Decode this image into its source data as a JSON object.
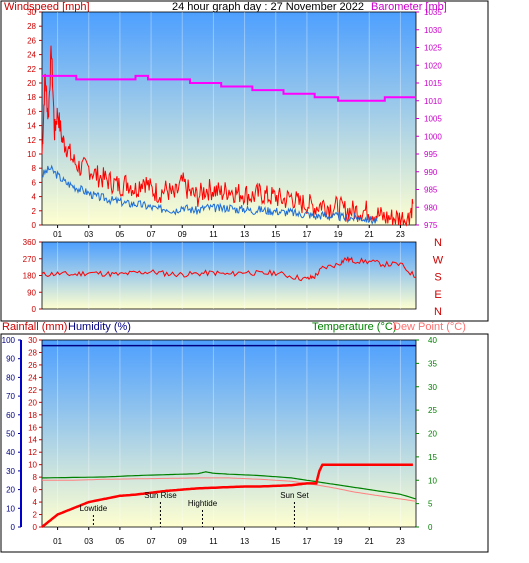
{
  "header": {
    "wind_label": "Windspeed [mph]",
    "title": "24 hour graph day : 27 November 2022",
    "baro_label": "Barometer [mb]"
  },
  "lower_header": {
    "rain_label": "Rainfall (mm)",
    "humidity_label": "Humidity (%)",
    "temp_label": "Temperature (°C)",
    "dew_label": "Dew Point (°C)"
  },
  "colors": {
    "wind": "#ff0000",
    "gust": "#ff0000",
    "avg": "#1e6fd8",
    "baro": "#ff00ff",
    "rain": "#ff0000",
    "humidity": "#000080",
    "temp": "#008000",
    "dew": "#ff8080",
    "sky_top": "#4d9fff",
    "sky_bottom": "#ffffd0"
  },
  "x_ticks": [
    "01",
    "03",
    "05",
    "07",
    "09",
    "11",
    "13",
    "15",
    "17",
    "19",
    "21",
    "23"
  ],
  "chart_data": [
    {
      "type": "line",
      "name": "wind_baro",
      "x_range_hours": [
        0,
        24
      ],
      "wind_axis": {
        "range": [
          0,
          30
        ],
        "ticks": [
          0,
          2,
          4,
          6,
          8,
          10,
          12,
          14,
          16,
          18,
          20,
          22,
          24,
          26,
          28,
          30
        ]
      },
      "baro_axis": {
        "range": [
          975,
          1035
        ],
        "ticks": [
          975,
          980,
          985,
          990,
          995,
          1000,
          1005,
          1010,
          1015,
          1020,
          1025,
          1030,
          1035
        ]
      },
      "series": [
        {
          "key": "gust",
          "x": [
            0,
            0.2,
            0.4,
            0.6,
            0.8,
            1,
            1.3,
            1.6,
            2,
            2.5,
            3,
            3.5,
            4,
            4.5,
            5,
            5.5,
            6,
            6.5,
            7,
            7.5,
            8,
            8.5,
            9,
            9.5,
            10,
            10.5,
            11,
            11.5,
            12,
            12.5,
            13,
            13.5,
            14,
            14.5,
            15,
            15.5,
            16,
            16.5,
            17,
            17.5,
            18,
            18.5,
            19,
            19.5,
            20,
            20.5,
            21,
            21.5,
            22,
            22.5,
            23,
            23.5,
            23.8
          ],
          "y": [
            10,
            21,
            15,
            25,
            13,
            16,
            12,
            11,
            9,
            8,
            8,
            7,
            6.5,
            6,
            5.5,
            6,
            5,
            6.5,
            5,
            4.5,
            5,
            4,
            6,
            4.5,
            4,
            5,
            5,
            4.5,
            5,
            4.5,
            4.5,
            4,
            4.5,
            4,
            4,
            3.5,
            4,
            3,
            3,
            2.5,
            3,
            2.5,
            2.5,
            2,
            2,
            2,
            2,
            1.5,
            1,
            1,
            1,
            1,
            3
          ]
        },
        {
          "key": "avg",
          "x": [
            0,
            0.5,
            1,
            1.5,
            2,
            2.5,
            3,
            3.5,
            4,
            4.5,
            5,
            5.5,
            6,
            6.5,
            7,
            7.5,
            8,
            8.5,
            9,
            9.5,
            10,
            10.5,
            11,
            11.5,
            12,
            12.5,
            13,
            13.5,
            14,
            14.5,
            15,
            15.5,
            16,
            16.5,
            17,
            17.5,
            18,
            18.5,
            19,
            19.5,
            20,
            20.5,
            21,
            21.5
          ],
          "y": [
            7,
            8,
            7,
            6,
            5.5,
            5,
            4.5,
            4,
            3.8,
            3.5,
            3.3,
            3,
            3,
            2.8,
            2.5,
            2.2,
            2.4,
            2,
            2.6,
            2.2,
            2,
            2.5,
            2.4,
            2.3,
            2.5,
            2.2,
            2.3,
            2,
            2.2,
            2,
            2,
            1.8,
            1.8,
            1.5,
            1.6,
            1.2,
            1.4,
            1.2,
            1.2,
            1,
            1,
            1,
            0.8,
            0.5
          ]
        },
        {
          "key": "baro",
          "x": [
            0,
            1,
            1.5,
            2.2,
            3,
            4,
            5,
            6,
            6.8,
            7.5,
            8.5,
            9.5,
            10.5,
            11.5,
            12.5,
            13.5,
            14.5,
            15.5,
            16.5,
            17.5,
            18.5,
            19,
            20,
            21,
            22,
            23,
            24
          ],
          "y": [
            1017,
            1017,
            1017,
            1016,
            1016,
            1016,
            1016,
            1017,
            1016,
            1016,
            1016,
            1015,
            1015,
            1014,
            1014,
            1013,
            1013,
            1012,
            1012,
            1011,
            1011,
            1010,
            1010,
            1010,
            1011,
            1011,
            1011
          ]
        }
      ]
    },
    {
      "type": "line",
      "name": "wind_direction",
      "x_range_hours": [
        0,
        24
      ],
      "y_axis": {
        "range": [
          0,
          360
        ],
        "ticks": [
          0,
          90,
          180,
          270,
          360
        ]
      },
      "compass": [
        "N",
        "W",
        "S",
        "E",
        "N"
      ],
      "series": [
        {
          "key": "direction",
          "x": [
            0,
            1,
            2,
            3,
            4,
            5,
            6,
            7,
            8,
            9,
            10,
            11,
            12,
            13,
            14,
            15,
            16,
            17,
            17.5,
            18,
            19,
            19.5,
            20,
            21,
            22,
            23,
            24
          ],
          "y": [
            185,
            190,
            185,
            195,
            190,
            185,
            195,
            200,
            190,
            185,
            190,
            195,
            185,
            200,
            190,
            195,
            175,
            160,
            175,
            220,
            240,
            270,
            260,
            255,
            240,
            240,
            170
          ]
        }
      ]
    },
    {
      "type": "line",
      "name": "rain_humidity_temp",
      "x_range_hours": [
        0,
        24
      ],
      "rain_axis": {
        "range": [
          0,
          30
        ],
        "ticks": [
          0,
          2,
          4,
          6,
          8,
          10,
          12,
          14,
          16,
          18,
          20,
          22,
          24,
          26,
          28,
          30
        ]
      },
      "humidity_axis": {
        "range": [
          0,
          100
        ],
        "ticks": [
          0,
          10,
          20,
          30,
          40,
          50,
          60,
          70,
          80,
          90,
          100
        ]
      },
      "temp_axis": {
        "range": [
          0,
          40
        ],
        "ticks": [
          0,
          5,
          10,
          15,
          20,
          25,
          30,
          35,
          40
        ]
      },
      "series": [
        {
          "key": "rain",
          "x": [
            0,
            0.5,
            1,
            1.5,
            2,
            2.5,
            3,
            4,
            5,
            6,
            7,
            8,
            9,
            10,
            11,
            12,
            13,
            14,
            15,
            16,
            17,
            17.6,
            17.8,
            18,
            19,
            20,
            21,
            22,
            23,
            23.8
          ],
          "y": [
            0,
            1,
            2,
            2.5,
            3,
            3.5,
            4,
            4.5,
            5,
            5.2,
            5.5,
            5.8,
            6,
            6.2,
            6.3,
            6.4,
            6.5,
            6.5,
            6.6,
            6.7,
            7,
            7,
            9,
            10,
            10,
            10,
            10,
            10,
            10,
            10
          ]
        },
        {
          "key": "humidity",
          "x": [
            0,
            24
          ],
          "y": [
            97,
            97
          ]
        },
        {
          "key": "temp",
          "x": [
            0,
            2,
            4,
            6,
            8,
            9,
            10,
            10.5,
            11,
            12,
            14,
            16,
            17,
            18,
            19,
            20,
            21,
            22,
            23,
            24
          ],
          "y": [
            10.5,
            10.6,
            10.7,
            11,
            11.2,
            11.3,
            11.4,
            11.8,
            11.5,
            11.3,
            11,
            10.5,
            10,
            9.5,
            9,
            8.5,
            8,
            7.5,
            7,
            6
          ]
        },
        {
          "key": "dew",
          "x": [
            0,
            2,
            4,
            6,
            8,
            10,
            12,
            14,
            16,
            17,
            18,
            19,
            20,
            21,
            22,
            23,
            24
          ],
          "y": [
            10,
            10,
            10.2,
            10.3,
            10.4,
            10.5,
            10.5,
            10.2,
            9.8,
            9.3,
            8.8,
            8.2,
            7.5,
            7,
            6.5,
            6,
            5.5
          ]
        }
      ],
      "annotations": [
        {
          "label": "Lowtide",
          "hour": 3.3
        },
        {
          "label": "Sun Rise",
          "hour": 7.6
        },
        {
          "label": "Hightide",
          "hour": 10.3
        },
        {
          "label": "Sun Set",
          "hour": 16.2
        }
      ]
    }
  ]
}
